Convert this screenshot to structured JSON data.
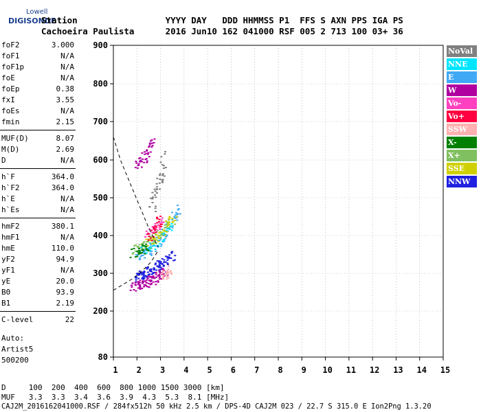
{
  "logo": {
    "line1": "Lowell",
    "line2": "DIGISONDE"
  },
  "header": {
    "line1": "Station                 YYYY DAY   DDD HHMMSS P1  FFS S AXN PPS IGA PS",
    "line2": "Cachoeira Paulista      2016 Jun10 162 041000 RSF 005 2 713 100 03+ 36"
  },
  "params": [
    {
      "label": "foF2",
      "value": "3.000"
    },
    {
      "label": "foF1",
      "value": "N/A"
    },
    {
      "label": "foF1p",
      "value": "N/A"
    },
    {
      "label": "foE",
      "value": "N/A"
    },
    {
      "label": "foEp",
      "value": "0.38"
    },
    {
      "label": "fxI",
      "value": "3.55"
    },
    {
      "label": "foEs",
      "value": "N/A"
    },
    {
      "label": "fmin",
      "value": "2.15"
    },
    {
      "label": "MUF(D)",
      "value": "8.07"
    },
    {
      "label": "M(D)",
      "value": "2.69"
    },
    {
      "label": "D",
      "value": "N/A"
    },
    {
      "label": "h`F",
      "value": "364.0"
    },
    {
      "label": "h`F2",
      "value": "364.0"
    },
    {
      "label": "h`E",
      "value": "N/A"
    },
    {
      "label": "h`Es",
      "value": "N/A"
    },
    {
      "label": "hmF2",
      "value": "380.1"
    },
    {
      "label": "hmF1",
      "value": "N/A"
    },
    {
      "label": "hmE",
      "value": "110.0"
    },
    {
      "label": "yF2",
      "value": "94.9"
    },
    {
      "label": "yF1",
      "value": "N/A"
    },
    {
      "label": "yE",
      "value": "20.0"
    },
    {
      "label": "B0",
      "value": "93.9"
    },
    {
      "label": "B1",
      "value": "2.19"
    },
    {
      "label": "C-level",
      "value": "22"
    }
  ],
  "auto": {
    "line1": "Auto:",
    "line2": "Artist5",
    "line3": "500200"
  },
  "legend": [
    {
      "label": "NoVal",
      "color": "#808080"
    },
    {
      "label": "NNE",
      "color": "#00e5ff"
    },
    {
      "label": "E",
      "color": "#3fa9f5"
    },
    {
      "label": "W",
      "color": "#b000a0"
    },
    {
      "label": "Vo-",
      "color": "#ff40c0"
    },
    {
      "label": "Vo+",
      "color": "#ff0040"
    },
    {
      "label": "SSW",
      "color": "#ffb0b0"
    },
    {
      "label": "X-",
      "color": "#008000"
    },
    {
      "label": "X+",
      "color": "#80c060"
    },
    {
      "label": "SSE",
      "color": "#d0d000"
    },
    {
      "label": "NNW",
      "color": "#2020e0"
    }
  ],
  "footer": {
    "d_line": "D     100  200  400  600  800 1000 1500 3000 [km]",
    "muf_line": "MUF   3.3  3.3  3.4  3.6  3.9  4.3  5.3  8.1 [MHz]",
    "info_line": "CAJ2M_2016162041000.RSF / 284fx512h 50 kHz 2.5 km / DPS-4D CAJ2M 023 / 22.7 S 315.0 E Ion2Png 1.3.20"
  },
  "chart_data": {
    "type": "scatter",
    "x_ticks": [
      "1",
      "2",
      "3",
      "4",
      "5",
      "6",
      "7",
      "8",
      "9",
      "10",
      "11",
      "12",
      "13",
      "14",
      "15"
    ],
    "y_ticks": [
      "80",
      "200",
      "300",
      "400",
      "500",
      "600",
      "700",
      "800",
      "900"
    ],
    "xlim": [
      1,
      15
    ],
    "ylim": [
      80,
      900
    ],
    "grid": "dotted",
    "legend_placement": "right",
    "traces": [
      {
        "name": "NNW",
        "x": [
          1.9,
          2.1,
          2.3,
          2.5,
          2.7,
          2.9,
          3.1,
          3.3,
          3.5
        ],
        "y": [
          290,
          294,
          298,
          305,
          312,
          320,
          330,
          340,
          350
        ]
      },
      {
        "name": "W",
        "x": [
          1.8,
          2.0,
          2.2,
          2.4,
          2.6,
          2.8,
          3.0,
          3.2
        ],
        "y": [
          265,
          268,
          272,
          276,
          282,
          290,
          298,
          306
        ]
      },
      {
        "name": "SSW",
        "x": [
          3.0,
          3.2,
          3.4
        ],
        "y": [
          290,
          300,
          312
        ]
      },
      {
        "name": "E",
        "x": [
          2.0,
          2.3,
          2.6,
          2.9,
          3.2,
          3.5,
          3.7
        ],
        "y": [
          345,
          355,
          368,
          385,
          410,
          440,
          470
        ]
      },
      {
        "name": "NNE",
        "x": [
          2.2,
          2.6,
          3.0,
          3.4
        ],
        "y": [
          360,
          372,
          395,
          430
        ]
      },
      {
        "name": "X+",
        "x": [
          1.9,
          2.3,
          2.7,
          3.1,
          3.5
        ],
        "y": [
          365,
          375,
          392,
          415,
          445
        ]
      },
      {
        "name": "SSE",
        "x": [
          2.4,
          2.8,
          3.2,
          3.6
        ],
        "y": [
          380,
          395,
          420,
          455
        ]
      },
      {
        "name": "X-",
        "x": [
          1.8,
          2.1,
          2.5
        ],
        "y": [
          355,
          362,
          372
        ]
      },
      {
        "name": "Vo-",
        "x": [
          2.4,
          2.8,
          3.0
        ],
        "y": [
          405,
          425,
          445
        ]
      },
      {
        "name": "Vo+",
        "x": [
          2.5,
          2.8,
          2.95
        ],
        "y": [
          395,
          425,
          455
        ]
      },
      {
        "name": "NoVal",
        "x": [
          2.6,
          2.8,
          3.0,
          3.2
        ],
        "y": [
          470,
          520,
          560,
          620
        ]
      },
      {
        "name": "W",
        "x": [
          2.0,
          2.2,
          2.4,
          2.6
        ],
        "y": [
          590,
          600,
          620,
          650
        ]
      }
    ],
    "dashed_curve": {
      "x": [
        1.0,
        1.3,
        1.7,
        2.1,
        2.5,
        2.9
      ],
      "y": [
        660,
        600,
        540,
        480,
        420,
        370
      ]
    },
    "dashed_curve_low": {
      "x": [
        1.0,
        1.4,
        1.8,
        2.2,
        2.6,
        2.9
      ],
      "y": [
        255,
        270,
        285,
        305,
        330,
        360
      ]
    }
  }
}
